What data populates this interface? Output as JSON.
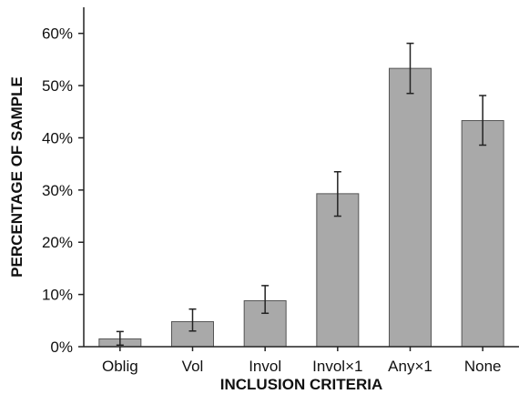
{
  "chart_data": {
    "type": "bar",
    "categories": [
      "Oblig",
      "Vol",
      "Invol",
      "Invol×1",
      "Any×1",
      "None"
    ],
    "values": [
      1.5,
      4.8,
      8.8,
      29.3,
      53.3,
      43.3
    ],
    "error_low": [
      0.3,
      3.0,
      6.4,
      25.0,
      48.5,
      38.6
    ],
    "error_high": [
      2.9,
      7.2,
      11.7,
      33.5,
      58.1,
      48.1
    ],
    "xlabel": "INCLUSION CRITERIA",
    "ylabel": "PERCENTAGE OF SAMPLE",
    "ylim": [
      0,
      65
    ],
    "yticks": [
      0,
      10,
      20,
      30,
      40,
      50,
      60
    ],
    "ytick_labels": [
      "0%",
      "10%",
      "20%",
      "30%",
      "40%",
      "50%",
      "60%"
    ],
    "grid": false,
    "colors": {
      "bar_fill": "#a9a9a9",
      "bar_stroke": "#555555",
      "axis": "#222222",
      "error_bar": "#222222"
    }
  }
}
